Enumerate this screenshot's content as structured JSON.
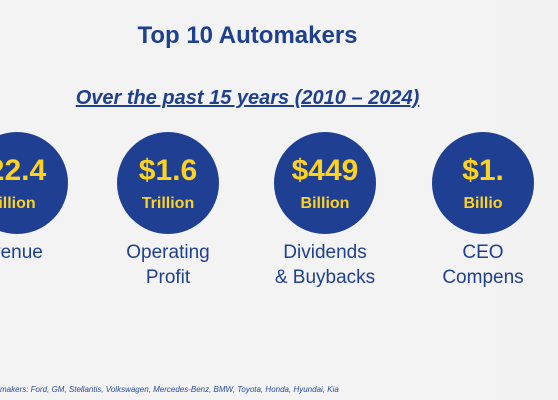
{
  "slide": {
    "title": "Top 10 Automakers",
    "subtitle": "Over the past 15 years (2010 – 2024)",
    "stats": [
      {
        "value": "22.4",
        "unit": "illion",
        "label_lines": [
          "venue"
        ]
      },
      {
        "value": "$1.6",
        "unit": "Trillion",
        "label_lines": [
          "Operating",
          "Profit"
        ]
      },
      {
        "value": "$449",
        "unit": "Billion",
        "label_lines": [
          "Dividends",
          "& Buybacks"
        ]
      },
      {
        "value": "$1.",
        "unit": "Billio",
        "label_lines": [
          "CEO",
          "Compens"
        ]
      }
    ],
    "footnote": "makers: Ford, GM, Stellantis, Volkswagen, Mercedes-Benz, BMW, Toyota, Honda, Hyundai, Kia"
  },
  "colors": {
    "background": "#f3f3f3",
    "heading_blue": "#1f3f8f",
    "circle_blue": "#1f3f92",
    "value_yellow": "#ffd21f"
  }
}
